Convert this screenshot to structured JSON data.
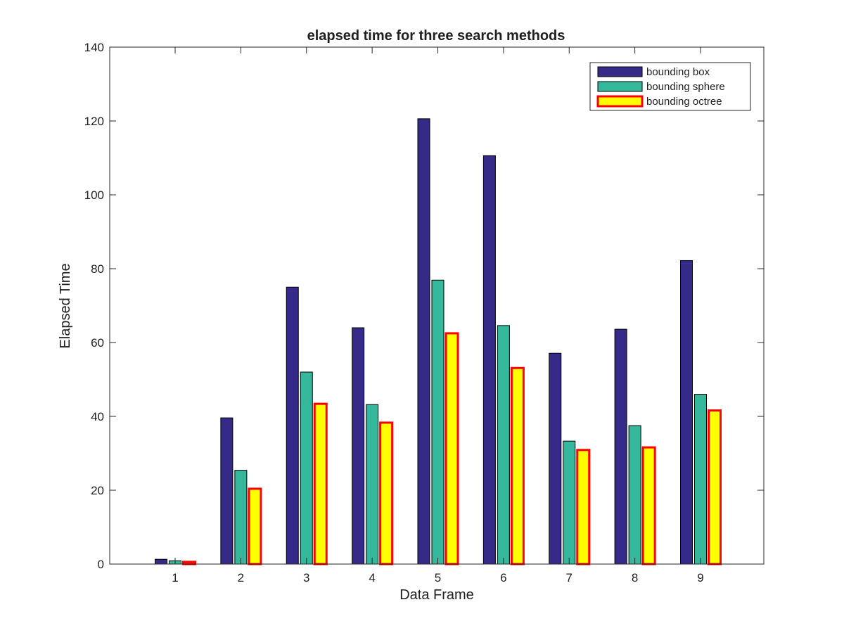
{
  "chart_data": {
    "type": "bar",
    "title": "elapsed time for three search methods",
    "xlabel": "Data Frame",
    "ylabel": "Elapsed Time",
    "categories": [
      "1",
      "2",
      "3",
      "4",
      "5",
      "6",
      "7",
      "8",
      "9"
    ],
    "yticks": [
      "0",
      "20",
      "40",
      "60",
      "80",
      "100",
      "120",
      "140"
    ],
    "ylim": [
      0,
      140
    ],
    "grid": false,
    "legend_position": "top-right",
    "series": [
      {
        "name": "bounding box",
        "color": "#352A87",
        "edge_color": "#000000",
        "values": [
          1.3,
          39.6,
          75.0,
          64.0,
          120.6,
          110.6,
          57.1,
          63.6,
          82.2
        ]
      },
      {
        "name": "bounding sphere",
        "color": "#35B79B",
        "edge_color": "#000000",
        "values": [
          0.9,
          25.4,
          52.0,
          43.2,
          76.9,
          64.6,
          33.3,
          37.5,
          46.0
        ]
      },
      {
        "name": "bounding octree",
        "color": "#FFFF00",
        "edge_color": "#FF0000",
        "values": [
          0.6,
          20.4,
          43.4,
          38.3,
          62.5,
          53.1,
          30.9,
          31.6,
          41.6
        ]
      }
    ]
  }
}
